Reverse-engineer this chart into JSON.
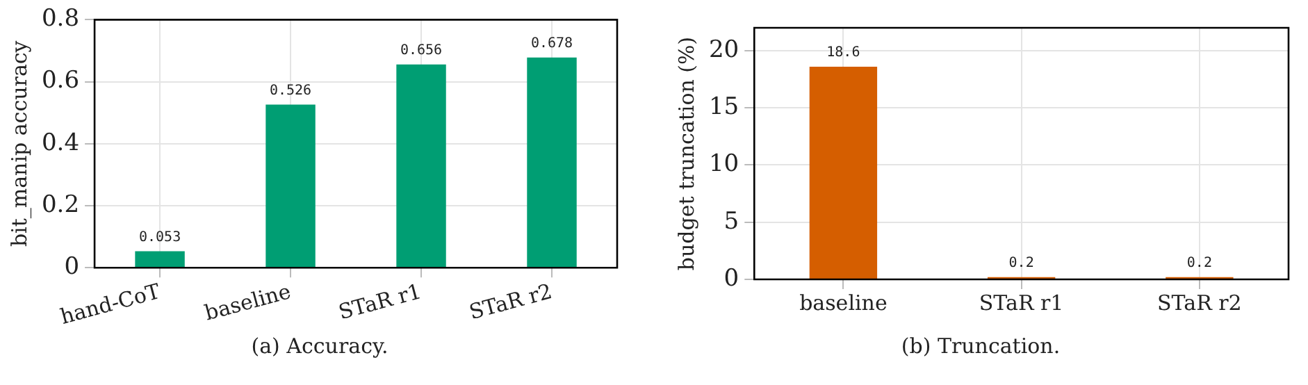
{
  "chart_data": [
    {
      "type": "bar",
      "categories": [
        "hand-CoT",
        "baseline",
        "STaR r1",
        "STaR r2"
      ],
      "values": [
        0.053,
        0.526,
        0.656,
        0.678
      ],
      "color": "#009e73",
      "ylabel": "bit_manip accuracy",
      "ylim": [
        0,
        0.8
      ],
      "yticks": [
        0,
        0.2,
        0.4,
        0.6,
        0.8
      ],
      "grid": true,
      "data_labels": true,
      "annotations": [
        "(a) Accuracy."
      ]
    },
    {
      "type": "bar",
      "categories": [
        "baseline",
        "STaR r1",
        "STaR r2"
      ],
      "values": [
        18.6,
        0.2,
        0.2
      ],
      "color": "#d55e00",
      "ylabel": "budget truncation (%)",
      "ylim": [
        0,
        22
      ],
      "yticks": [
        0,
        5,
        10,
        15,
        20
      ],
      "grid": true,
      "data_labels": true,
      "annotations": [
        "(b) Truncation."
      ]
    }
  ]
}
